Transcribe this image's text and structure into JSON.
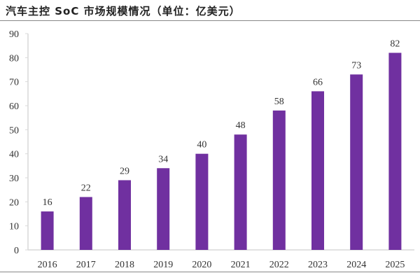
{
  "title": "汽车主控 SoC 市场规模情况（单位：亿美元）",
  "chart_data": {
    "type": "bar",
    "title": "汽车主控 SoC 市场规模情况（单位：亿美元）",
    "categories": [
      "2016",
      "2017",
      "2018",
      "2019",
      "2020",
      "2021",
      "2022",
      "2023",
      "2024",
      "2025"
    ],
    "values": [
      16,
      22,
      29,
      34,
      40,
      48,
      58,
      66,
      73,
      82
    ],
    "xlabel": "",
    "ylabel": "",
    "ylim": [
      0,
      90
    ],
    "yticks": [
      0,
      10,
      20,
      30,
      40,
      50,
      60,
      70,
      80,
      90
    ],
    "grid": false,
    "data_labels": true,
    "bar_color": "#7030A0"
  }
}
